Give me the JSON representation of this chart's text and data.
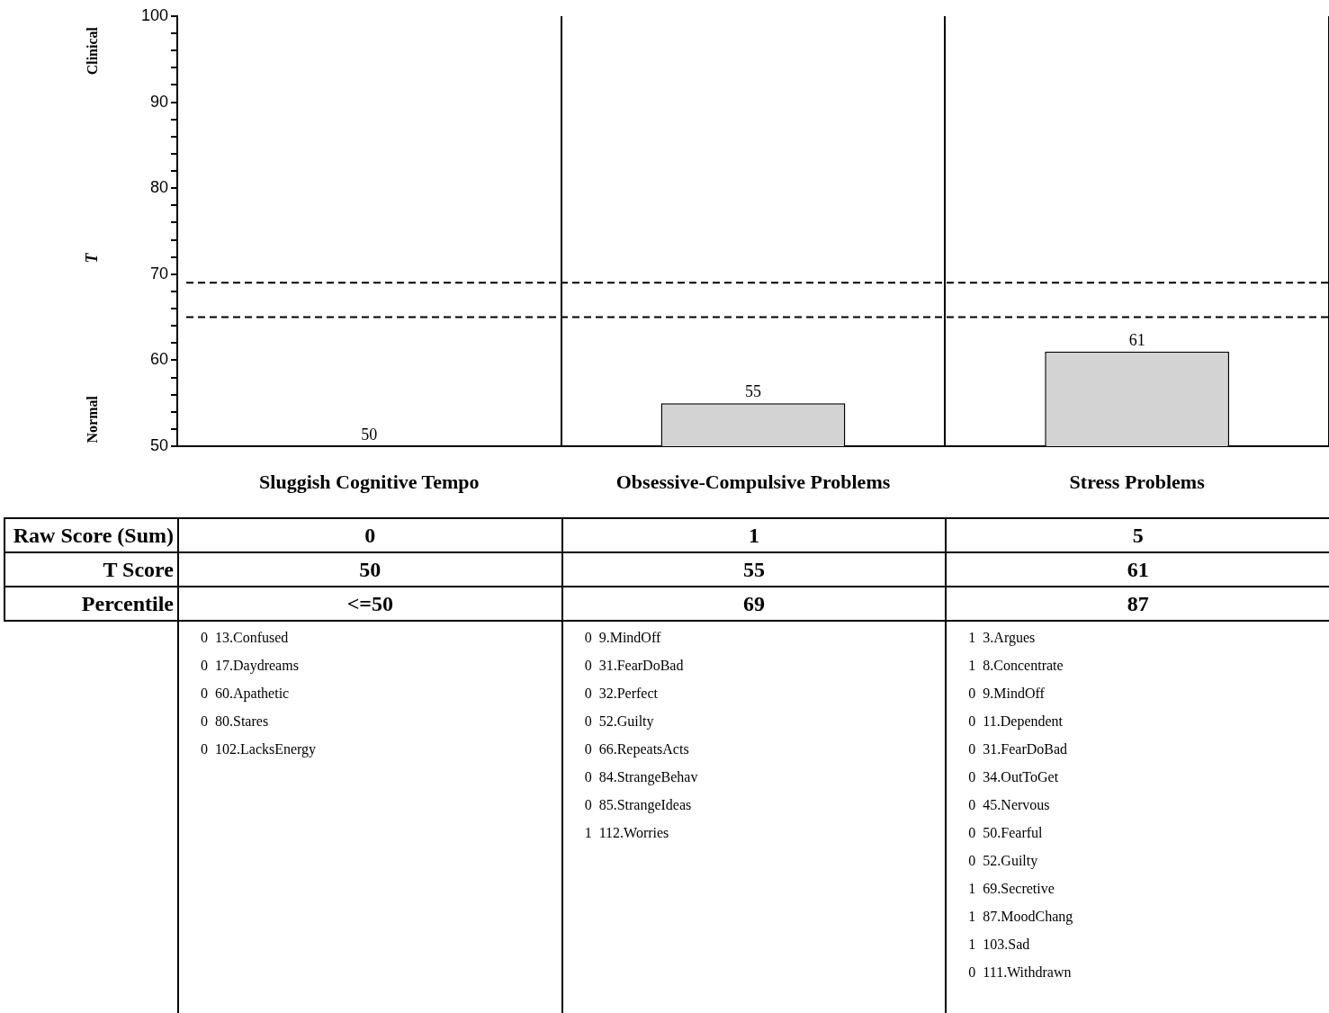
{
  "chart_data": {
    "type": "bar",
    "categories": [
      "Sluggish Cognitive Tempo",
      "Obsessive-Compulsive Problems",
      "Stress Problems"
    ],
    "values": [
      50,
      55,
      61
    ],
    "data_labels": true,
    "color": "#d3d3d3",
    "ylabel": "T",
    "ylim": [
      50,
      100
    ],
    "yticks": [
      50,
      {
        "value": 52,
        "label": null
      },
      {
        "value": 54,
        "label": null
      },
      {
        "value": 56,
        "label": null
      },
      {
        "value": 58,
        "label": null
      },
      60,
      {
        "value": 62,
        "label": null
      },
      {
        "value": 64,
        "label": null
      },
      {
        "value": 66,
        "label": null
      },
      {
        "value": 68,
        "label": null
      },
      70,
      {
        "value": 72,
        "label": null
      },
      {
        "value": 74,
        "label": null
      },
      {
        "value": 76,
        "label": null
      },
      {
        "value": 78,
        "label": null
      },
      80,
      {
        "value": 82,
        "label": null
      },
      {
        "value": 84,
        "label": null
      },
      {
        "value": 86,
        "label": null
      },
      {
        "value": 88,
        "label": null
      },
      90,
      {
        "value": 92,
        "label": null
      },
      {
        "value": 94,
        "label": null
      },
      {
        "value": 96,
        "label": null
      },
      {
        "value": 98,
        "label": null
      },
      100
    ],
    "grid": "x",
    "legend": false,
    "ref_lines": [
      {
        "axis": "y",
        "value": 65,
        "color": "#000000",
        "line_style": "dashed"
      },
      {
        "axis": "y",
        "value": 69,
        "color": "#000000",
        "line_style": "dashed"
      }
    ],
    "annotations": [
      "Clinical",
      "Normal",
      "Raw Score (Sum)",
      "T Score",
      "Percentile",
      "0",
      "50",
      "<=50",
      "0  13.Confused\n0  17.Daydreams\n0  60.Apathetic\n0  80.Stares\n0  102.LacksEnergy",
      "1",
      "55",
      "69",
      "0  9.MindOff\n0  31.FearDoBad\n0  32.Perfect\n0  52.Guilty\n0  66.RepeatsActs\n0  84.StrangeBehav\n0  85.StrangeIdeas\n1  112.Worries",
      "5",
      "61",
      "87",
      "1  3.Argues\n1  8.Concentrate\n0  9.MindOff\n0  11.Dependent\n0  31.FearDoBad\n0  34.OutToGet\n0  45.Nervous\n0  50.Fearful\n0  52.Guilty\n1  69.Secretive\n1  87.MoodChang\n1  103.Sad\n0  111.Withdrawn"
    ]
  }
}
